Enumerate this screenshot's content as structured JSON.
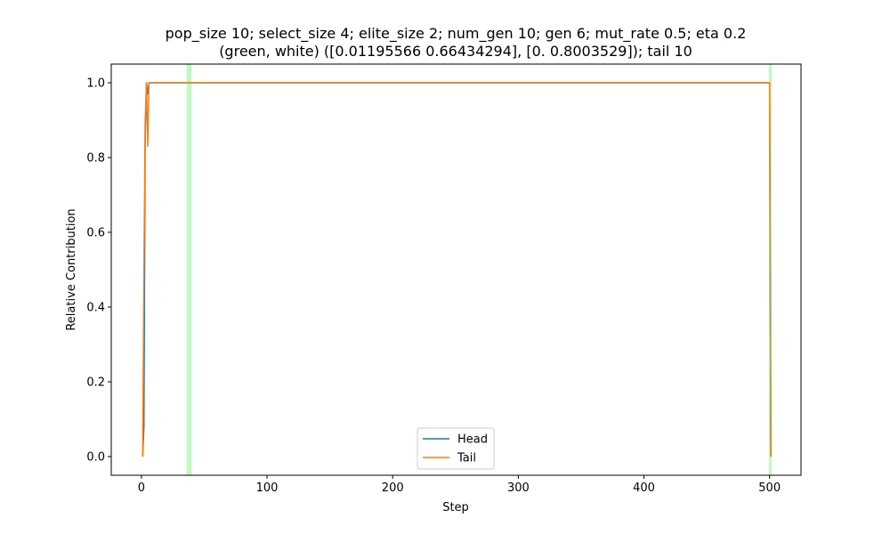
{
  "chart_data": {
    "type": "line",
    "title": [
      "pop_size 10; select_size 4; elite_size 2; num_gen 10; gen 6; mut_rate 0.5; eta 0.2",
      "(green, white) ([0.01195566 0.66434294], [0.        0.8003529]); tail 10"
    ],
    "xlabel": "Step",
    "ylabel": "Relative Contribution",
    "xlim": [
      -24,
      525
    ],
    "ylim": [
      -0.05,
      1.05
    ],
    "xticks": [
      0,
      100,
      200,
      300,
      400,
      500
    ],
    "yticks": [
      0.0,
      0.2,
      0.4,
      0.6,
      0.7999999999999999,
      1.0
    ],
    "ytick_labels": [
      "0.0",
      "0.2",
      "0.4",
      "0.6",
      "0.8",
      "1.0"
    ],
    "grid": false,
    "legend_position": "lower center",
    "highlight_bands": [
      {
        "x0": 36,
        "x1": 40,
        "color": "#90ee90"
      },
      {
        "x0": 499.5,
        "x1": 501.5,
        "color": "#90ee90"
      }
    ],
    "series": [
      {
        "name": "Head",
        "color": "#1f77b4",
        "x": [
          1,
          2,
          3,
          4,
          5,
          6,
          7,
          500,
          501
        ],
        "y": [
          0.0,
          0.08,
          0.85,
          1.0,
          0.97,
          1.0,
          1.0,
          1.0,
          0.0
        ]
      },
      {
        "name": "Tail",
        "color": "#ff7f0e",
        "x": [
          1,
          2,
          3,
          4,
          5,
          6,
          7,
          500,
          501
        ],
        "y": [
          0.0,
          0.5,
          0.9,
          1.0,
          0.83,
          1.0,
          1.0,
          1.0,
          0.0
        ]
      }
    ]
  }
}
